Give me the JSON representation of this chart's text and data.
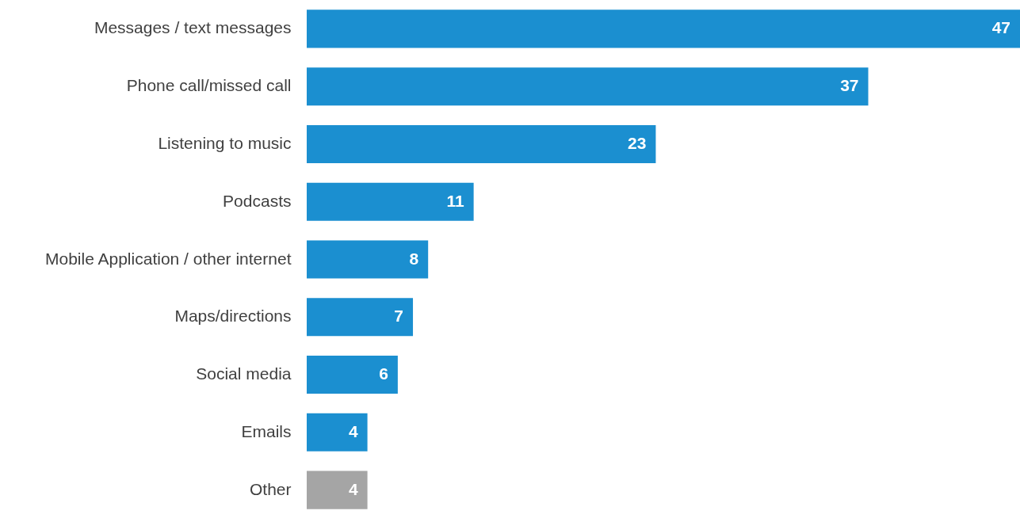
{
  "chart_data": {
    "type": "bar",
    "orientation": "horizontal",
    "data_labels": true,
    "categories": [
      "Messages / text messages",
      "Phone call/missed call",
      "Listening to music",
      "Podcasts",
      "Mobile Application / other internet",
      "Maps/directions",
      "Social media",
      "Emails",
      "Other"
    ],
    "values": [
      47,
      37,
      23,
      11,
      8,
      7,
      6,
      4,
      4
    ],
    "colors": [
      "#1b8fd0",
      "#1b8fd0",
      "#1b8fd0",
      "#1b8fd0",
      "#1b8fd0",
      "#1b8fd0",
      "#1b8fd0",
      "#1b8fd0",
      "#a5a5a5"
    ]
  }
}
